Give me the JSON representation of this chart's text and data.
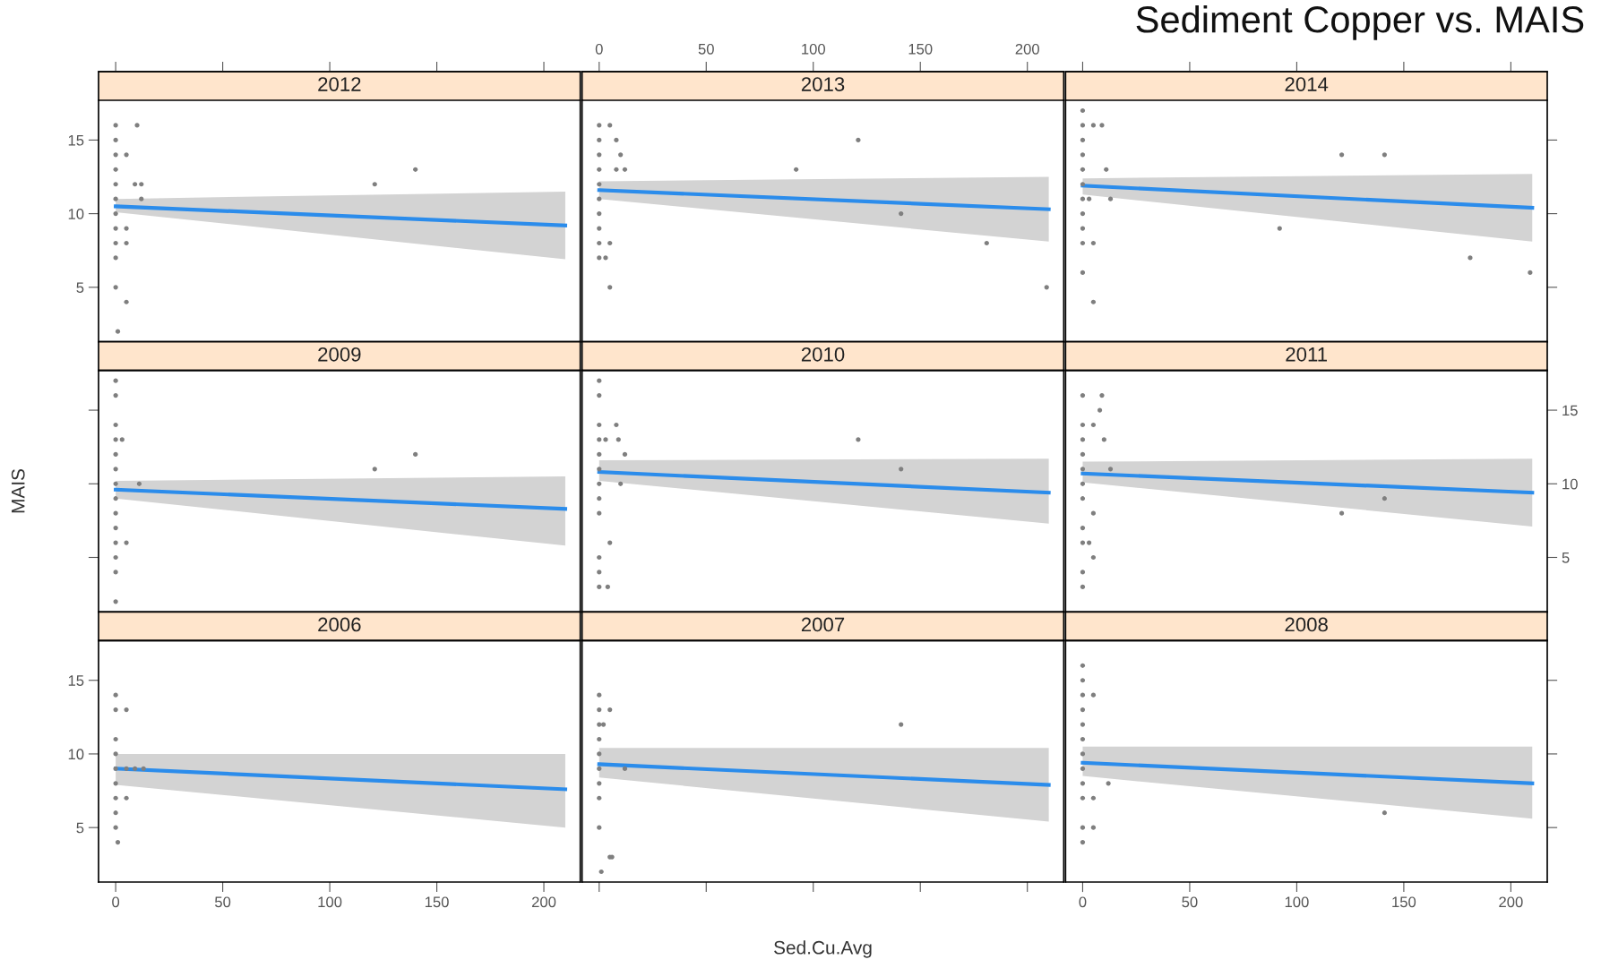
{
  "chart_data": [
    {
      "type": "scatter",
      "title": "2012",
      "xlim": [
        -8,
        217
      ],
      "xticks": [
        0,
        50,
        100,
        150,
        200
      ],
      "ylim": [
        1.3,
        17.7
      ],
      "yticks": [
        5,
        10,
        15
      ],
      "tick_labels": "y",
      "series": [
        {
          "type": "scatter",
          "marker": "circle",
          "color": "#7f7f7f",
          "x": [
            0,
            0,
            0,
            0,
            0,
            0,
            0,
            0,
            0,
            0,
            0,
            1,
            10,
            5,
            9,
            12,
            12,
            5,
            5,
            5,
            121,
            140
          ],
          "values": [
            16,
            15,
            14,
            13,
            12,
            11,
            10,
            9,
            8,
            7,
            5,
            2,
            16,
            14,
            12,
            12,
            11,
            9,
            8,
            4,
            12,
            13
          ]
        },
        {
          "type": "line",
          "color": "#2b8ceb",
          "x": [
            0,
            210
          ],
          "values": [
            10.5,
            9.2
          ],
          "lower": [
            10.1,
            6.9
          ],
          "upper": [
            11.0,
            11.5
          ]
        }
      ]
    },
    {
      "type": "scatter",
      "title": "2013",
      "xlim": [
        -8,
        217
      ],
      "xticks": [
        0,
        50,
        100,
        150,
        200
      ],
      "ylim": [
        1.3,
        17.7
      ],
      "yticks": [
        5,
        10,
        15
      ],
      "tick_labels": "x",
      "series": [
        {
          "type": "scatter",
          "marker": "circle",
          "color": "#7f7f7f",
          "x": [
            0,
            0,
            0,
            0,
            0,
            0,
            0,
            0,
            0,
            0,
            5,
            8,
            10,
            8,
            12,
            5,
            3,
            5,
            92,
            121,
            141,
            181,
            209
          ],
          "values": [
            16,
            15,
            14,
            13,
            12,
            11,
            10,
            9,
            8,
            7,
            16,
            15,
            14,
            13,
            13,
            8,
            7,
            5,
            13,
            15,
            10,
            8,
            5
          ]
        },
        {
          "type": "line",
          "color": "#2b8ceb",
          "x": [
            0,
            210
          ],
          "values": [
            11.6,
            10.3
          ],
          "lower": [
            11.0,
            8.1
          ],
          "upper": [
            12.2,
            12.5
          ]
        }
      ]
    },
    {
      "type": "scatter",
      "title": "2014",
      "xlim": [
        -8,
        217
      ],
      "xticks": [
        0,
        50,
        100,
        150,
        200
      ],
      "ylim": [
        1.3,
        17.7
      ],
      "yticks": [
        5,
        10,
        15
      ],
      "tick_labels": false,
      "series": [
        {
          "type": "scatter",
          "marker": "circle",
          "color": "#7f7f7f",
          "x": [
            0,
            0,
            0,
            0,
            0,
            0,
            0,
            0,
            0,
            0,
            0,
            5,
            9,
            11,
            3,
            13,
            5,
            5,
            92,
            121,
            141,
            181,
            209
          ],
          "values": [
            17,
            16,
            15,
            14,
            13,
            12,
            11,
            10,
            9,
            8,
            6,
            16,
            16,
            13,
            11,
            11,
            8,
            4,
            9,
            14,
            14,
            7,
            6
          ]
        },
        {
          "type": "line",
          "color": "#2b8ceb",
          "x": [
            0,
            210
          ],
          "values": [
            11.9,
            10.4
          ],
          "lower": [
            11.3,
            8.1
          ],
          "upper": [
            12.4,
            12.7
          ]
        }
      ]
    },
    {
      "type": "scatter",
      "title": "2009",
      "xlim": [
        -8,
        217
      ],
      "xticks": [
        0,
        50,
        100,
        150,
        200
      ],
      "ylim": [
        1.3,
        17.7
      ],
      "yticks": [
        5,
        10,
        15
      ],
      "tick_labels": false,
      "series": [
        {
          "type": "scatter",
          "marker": "circle",
          "color": "#7f7f7f",
          "x": [
            0,
            0,
            0,
            0,
            0,
            0,
            0,
            0,
            0,
            0,
            0,
            0,
            0,
            0,
            3,
            5,
            11,
            121,
            140
          ],
          "values": [
            17,
            16,
            14,
            13,
            12,
            11,
            10,
            9,
            8,
            7,
            6,
            5,
            4,
            2,
            13,
            6,
            10,
            11,
            12
          ]
        },
        {
          "type": "line",
          "color": "#2b8ceb",
          "x": [
            0,
            210
          ],
          "values": [
            9.6,
            8.3
          ],
          "lower": [
            9.0,
            5.8
          ],
          "upper": [
            10.2,
            10.5
          ]
        }
      ]
    },
    {
      "type": "scatter",
      "title": "2010",
      "xlim": [
        -8,
        217
      ],
      "xticks": [
        0,
        50,
        100,
        150,
        200
      ],
      "ylim": [
        1.3,
        17.7
      ],
      "yticks": [
        5,
        10,
        15
      ],
      "tick_labels": false,
      "series": [
        {
          "type": "scatter",
          "marker": "circle",
          "color": "#7f7f7f",
          "x": [
            0,
            0,
            0,
            0,
            0,
            0,
            0,
            0,
            0,
            0,
            0,
            0,
            3,
            8,
            9,
            12,
            10,
            5,
            4,
            121,
            141
          ],
          "values": [
            17,
            16,
            14,
            13,
            12,
            11,
            10,
            9,
            8,
            5,
            4,
            3,
            13,
            14,
            13,
            12,
            10,
            6,
            3,
            13,
            11
          ]
        },
        {
          "type": "line",
          "color": "#2b8ceb",
          "x": [
            0,
            210
          ],
          "values": [
            10.8,
            9.4
          ],
          "lower": [
            10.2,
            7.3
          ],
          "upper": [
            11.6,
            11.7
          ]
        }
      ]
    },
    {
      "type": "scatter",
      "title": "2011",
      "xlim": [
        -8,
        217
      ],
      "xticks": [
        0,
        50,
        100,
        150,
        200
      ],
      "ylim": [
        1.3,
        17.7
      ],
      "yticks": [
        5,
        10,
        15
      ],
      "tick_labels": "y",
      "series": [
        {
          "type": "scatter",
          "marker": "circle",
          "color": "#7f7f7f",
          "x": [
            0,
            0,
            0,
            0,
            0,
            0,
            0,
            0,
            0,
            0,
            0,
            5,
            9,
            8,
            10,
            13,
            5,
            3,
            5,
            121,
            141
          ],
          "values": [
            16,
            14,
            13,
            12,
            11,
            10,
            9,
            7,
            6,
            4,
            3,
            14,
            16,
            15,
            13,
            11,
            8,
            6,
            5,
            8,
            9
          ]
        },
        {
          "type": "line",
          "color": "#2b8ceb",
          "x": [
            0,
            210
          ],
          "values": [
            10.7,
            9.4
          ],
          "lower": [
            10.1,
            7.1
          ],
          "upper": [
            11.5,
            11.7
          ]
        }
      ]
    },
    {
      "type": "scatter",
      "title": "2006",
      "xlim": [
        -8,
        217
      ],
      "xticks": [
        0,
        50,
        100,
        150,
        200
      ],
      "ylim": [
        1.3,
        17.7
      ],
      "yticks": [
        5,
        10,
        15
      ],
      "series": [
        {
          "type": "scatter",
          "marker": "circle",
          "color": "#7f7f7f",
          "x": [
            0,
            0,
            0,
            0,
            0,
            0,
            0,
            0,
            0,
            1,
            5,
            5,
            9,
            13,
            5
          ],
          "values": [
            14,
            13,
            11,
            10,
            9,
            8,
            7,
            6,
            5,
            4,
            13,
            9,
            9,
            9,
            7
          ]
        },
        {
          "type": "line",
          "color": "#2b8ceb",
          "x": [
            0,
            210
          ],
          "values": [
            9.0,
            7.6
          ],
          "lower": [
            7.9,
            5.0
          ],
          "upper": [
            10.0,
            10.0
          ]
        }
      ]
    },
    {
      "type": "scatter",
      "title": "2007",
      "xlim": [
        -8,
        217
      ],
      "xticks": [
        0,
        50,
        100,
        150,
        200
      ],
      "ylim": [
        1.3,
        17.7
      ],
      "yticks": [
        5,
        10,
        15
      ],
      "tick_labels": false,
      "series": [
        {
          "type": "scatter",
          "marker": "circle",
          "color": "#7f7f7f",
          "x": [
            0,
            0,
            0,
            0,
            0,
            0,
            0,
            0,
            0,
            1,
            5,
            2,
            12,
            5,
            6,
            141
          ],
          "values": [
            14,
            13,
            12,
            11,
            10,
            9,
            8,
            7,
            5,
            2,
            13,
            12,
            9,
            3,
            3,
            12
          ]
        },
        {
          "type": "line",
          "color": "#2b8ceb",
          "x": [
            0,
            210
          ],
          "values": [
            9.3,
            7.9
          ],
          "lower": [
            8.4,
            5.4
          ],
          "upper": [
            10.4,
            10.4
          ]
        }
      ]
    },
    {
      "type": "scatter",
      "title": "2008",
      "xlim": [
        -8,
        217
      ],
      "xticks": [
        0,
        50,
        100,
        150,
        200
      ],
      "ylim": [
        1.3,
        17.7
      ],
      "yticks": [
        5,
        10,
        15
      ],
      "tick_labels": "x",
      "series": [
        {
          "type": "scatter",
          "marker": "circle",
          "color": "#7f7f7f",
          "x": [
            0,
            0,
            0,
            0,
            0,
            0,
            0,
            0,
            0,
            0,
            0,
            0,
            5,
            5,
            12,
            5,
            141
          ],
          "values": [
            16,
            15,
            14,
            13,
            12,
            11,
            10,
            9,
            8,
            7,
            5,
            4,
            14,
            7,
            8,
            5,
            6
          ]
        },
        {
          "type": "line",
          "color": "#2b8ceb",
          "x": [
            0,
            210
          ],
          "values": [
            9.4,
            8.0
          ],
          "lower": [
            8.5,
            5.6
          ],
          "upper": [
            10.5,
            10.5
          ]
        }
      ]
    },
    {
      "type": "other",
      "title": "Sediment Copper vs. MAIS",
      "xlabel": "Sed.Cu.Avg",
      "ylabel": "MAIS"
    }
  ]
}
